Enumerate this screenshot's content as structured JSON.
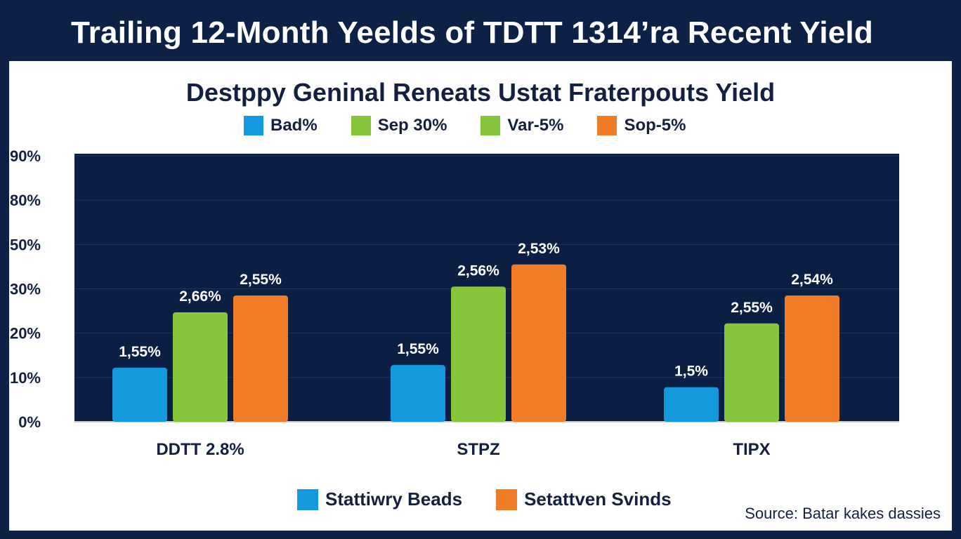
{
  "header": {
    "title": "Trailing 12-Month Yeelds of TDTT 1314’ra Recent Yield"
  },
  "colors": {
    "background": "#0d2146",
    "plot_bg": "#0b1f45",
    "card": "#ffffff",
    "text": "#13203f",
    "blue": "#1499df",
    "green": "#86c63a",
    "orange": "#f07c27"
  },
  "source": "Source: Batar kakes dassies",
  "chart_data": {
    "type": "bar",
    "title": "Destppy Geninal Reneats Ustat Fraterpouts Yield",
    "xlabel": "",
    "ylabel": "",
    "y_ticks": [
      "90%",
      "80%",
      "50%",
      "30%",
      "20%",
      "10%",
      "0%"
    ],
    "y_tick_values": [
      90,
      80,
      50,
      30,
      20,
      10,
      0
    ],
    "grid": true,
    "legend_position": "top-center",
    "legend": [
      {
        "label": "Bad%",
        "color": "#1499df"
      },
      {
        "label": "Sep 30%",
        "color": "#86c63a"
      },
      {
        "label": "Var-5%",
        "color": "#86c63a"
      },
      {
        "label": "Sop-5%",
        "color": "#f07c27"
      }
    ],
    "bottom_legend": [
      {
        "label": "Stattiwry Beads",
        "color": "#1499df"
      },
      {
        "label": "Setattven Svinds",
        "color": "#f07c27"
      }
    ],
    "categories": [
      "DDTT 2.8%",
      "STPZ",
      "TIPX"
    ],
    "series": [
      {
        "name": "Blue",
        "color": "#1499df",
        "values": [
          12.2,
          12.8,
          7.8
        ],
        "labels": [
          "1,55%",
          "1,55%",
          "1,5%"
        ]
      },
      {
        "name": "Green",
        "color": "#86c63a",
        "values": [
          24.7,
          31,
          22.2
        ],
        "labels": [
          "2,66%",
          "2,56%",
          "2,55%"
        ]
      },
      {
        "name": "Orange",
        "color": "#f07c27",
        "values": [
          28.5,
          41,
          28.5
        ],
        "labels": [
          "2,55%",
          "2,53%",
          "2,54%"
        ]
      }
    ]
  }
}
